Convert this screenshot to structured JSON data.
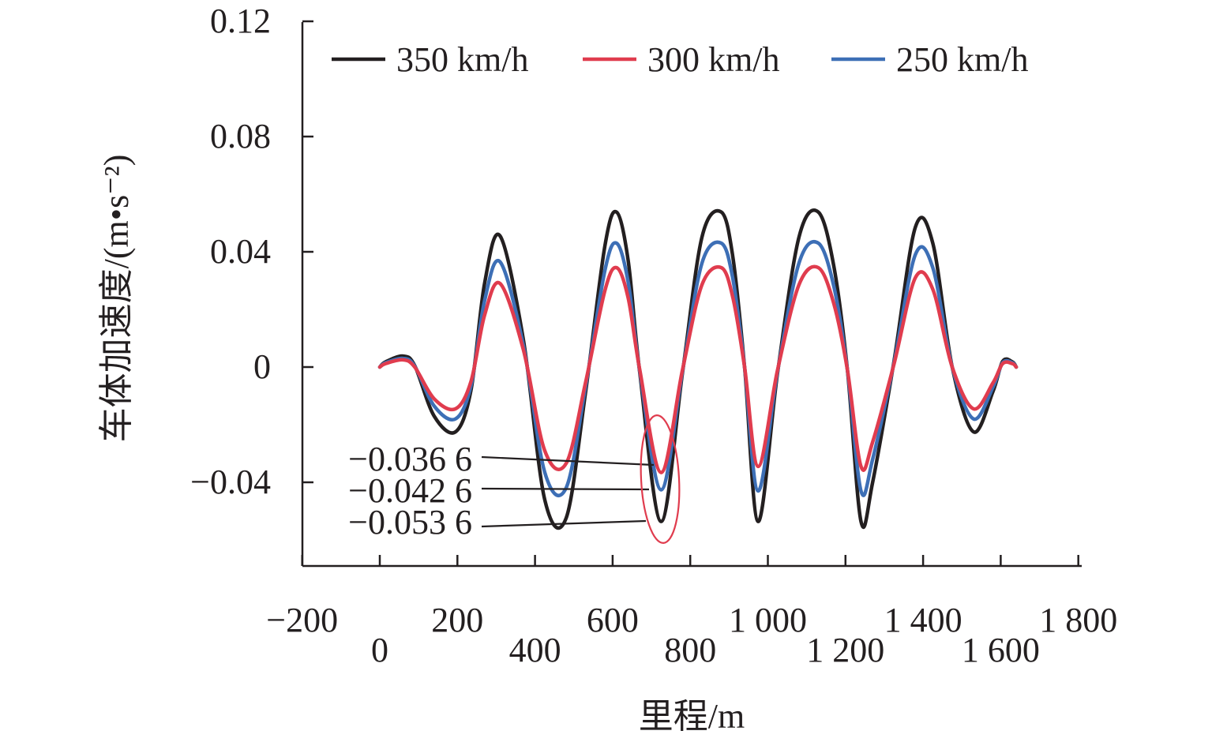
{
  "chart_data": {
    "type": "line",
    "title": "",
    "xlabel": "里程/m",
    "ylabel": "车体加速度/(m•s⁻²)",
    "xlim": [
      -200,
      1800
    ],
    "ylim": [
      -0.07,
      0.12
    ],
    "x_ticks": [
      -200,
      0,
      200,
      400,
      600,
      800,
      1000,
      1200,
      1400,
      1600,
      1800
    ],
    "x_tick_labels": [
      "−200",
      "0",
      "200",
      "400",
      "600",
      "800",
      "1 000",
      "1 200",
      "1 400",
      "1 600",
      "1 800"
    ],
    "y_ticks": [
      -0.04,
      0,
      0.04,
      0.08,
      0.12
    ],
    "y_tick_labels": [
      "−0.04",
      "0",
      "0.04",
      "0.08",
      "0.12"
    ],
    "grid": false,
    "legend_position": "top",
    "series": [
      {
        "name": "350 km/h",
        "color": "#231f20",
        "x": [
          0,
          15,
          60,
          90,
          140,
          195,
          235,
          270,
          310,
          370,
          425,
          480,
          530,
          580,
          610,
          640,
          670,
          725,
          780,
          830,
          880,
          910,
          940,
          975,
          1025,
          1080,
          1130,
          1170,
          1205,
          1240,
          1270,
          1325,
          1380,
          1425,
          1475,
          1530,
          1580,
          1605,
          1630,
          1640
        ],
        "y": [
          0,
          0.0018,
          0.0038,
          0.0005,
          -0.017,
          -0.0225,
          -0.008,
          0.029,
          0.0455,
          0.0095,
          -0.046,
          -0.0525,
          -0.009,
          0.042,
          0.0538,
          0.037,
          -0.002,
          -0.0536,
          -0.002,
          0.045,
          0.0538,
          0.038,
          0.0,
          -0.0536,
          -0.002,
          0.045,
          0.0538,
          0.035,
          -0.001,
          -0.0536,
          -0.04,
          0.002,
          0.0485,
          0.043,
          0.0,
          -0.0225,
          -0.0085,
          0.002,
          0.0018,
          0
        ]
      },
      {
        "name": "300 km/h",
        "color": "#e03c4e",
        "x": [
          0,
          15,
          60,
          90,
          140,
          195,
          235,
          270,
          310,
          370,
          425,
          480,
          530,
          580,
          610,
          640,
          670,
          725,
          780,
          830,
          880,
          910,
          940,
          975,
          1025,
          1080,
          1130,
          1170,
          1205,
          1240,
          1270,
          1325,
          1380,
          1425,
          1475,
          1530,
          1580,
          1605,
          1630,
          1640
        ],
        "y": [
          0,
          0.0012,
          0.0025,
          0.0,
          -0.011,
          -0.0145,
          -0.005,
          0.018,
          0.029,
          0.006,
          -0.029,
          -0.0335,
          -0.0055,
          0.0265,
          0.0345,
          0.024,
          -0.001,
          -0.0366,
          -0.001,
          0.0285,
          0.0345,
          0.024,
          0.0,
          -0.0345,
          -0.001,
          0.0285,
          0.0345,
          0.022,
          -0.001,
          -0.0345,
          -0.026,
          0.001,
          0.031,
          0.027,
          0.0,
          -0.0145,
          -0.0055,
          0.0012,
          0.0012,
          0
        ]
      },
      {
        "name": "250 km/h",
        "color": "#3d6fb6",
        "x": [
          0,
          15,
          60,
          90,
          140,
          195,
          235,
          270,
          310,
          370,
          425,
          480,
          530,
          580,
          610,
          640,
          670,
          725,
          780,
          830,
          880,
          910,
          940,
          975,
          1025,
          1080,
          1130,
          1170,
          1205,
          1240,
          1270,
          1325,
          1380,
          1425,
          1475,
          1530,
          1580,
          1605,
          1630,
          1640
        ],
        "y": [
          0,
          0.0015,
          0.003,
          0.0003,
          -0.0135,
          -0.018,
          -0.0065,
          0.023,
          0.0365,
          0.0075,
          -0.0365,
          -0.042,
          -0.007,
          0.0335,
          0.043,
          0.0295,
          -0.0015,
          -0.0426,
          -0.0015,
          0.036,
          0.043,
          0.0305,
          0.0,
          -0.043,
          -0.0015,
          0.036,
          0.043,
          0.028,
          -0.001,
          -0.043,
          -0.032,
          0.0015,
          0.039,
          0.0345,
          0.0,
          -0.018,
          -0.007,
          0.0015,
          0.0015,
          0
        ]
      }
    ],
    "annotations": [
      {
        "text": "−0.036 6",
        "x": 700,
        "y": -0.0366,
        "color": "#231f20"
      },
      {
        "text": "−0.042 6",
        "x": 700,
        "y": -0.0426,
        "color": "#231f20"
      },
      {
        "text": "−0.053 6",
        "x": 700,
        "y": -0.0536,
        "color": "#231f20"
      }
    ],
    "highlight_color": "#e03c4e"
  }
}
